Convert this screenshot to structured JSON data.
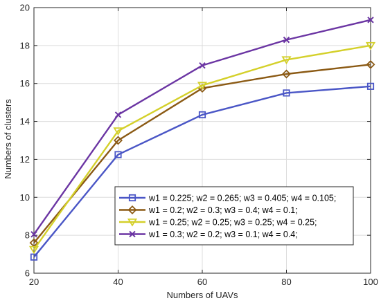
{
  "chart_data": {
    "type": "line",
    "title": "",
    "xlabel": "Numbers of UAVs",
    "ylabel": "Numbers of clusters",
    "x": [
      20,
      40,
      60,
      80,
      100
    ],
    "xlim": [
      20,
      100
    ],
    "ylim": [
      6,
      20
    ],
    "xticks": [
      20,
      40,
      60,
      80,
      100
    ],
    "yticks": [
      6,
      8,
      10,
      12,
      14,
      16,
      18,
      20
    ],
    "grid": true,
    "legend_position": "lower-right",
    "series": [
      {
        "name": "w1 = 0.225; w2 = 0.265; w3 = 0.405; w4 = 0.105;",
        "values": [
          6.85,
          12.25,
          14.35,
          15.5,
          15.85
        ],
        "color": "#4a56c6",
        "marker": "square"
      },
      {
        "name": "w1 = 0.2; w2 = 0.3; w3 = 0.4; w4 = 0.1;",
        "values": [
          7.6,
          13.0,
          15.75,
          16.5,
          17.0
        ],
        "color": "#8b5a14",
        "marker": "diamond"
      },
      {
        "name": "w1 = 0.25; w2 = 0.25; w3 = 0.25; w4 = 0.25;",
        "values": [
          7.25,
          13.5,
          15.9,
          17.25,
          18.0
        ],
        "color": "#d4d02a",
        "marker": "triangle-down"
      },
      {
        "name": "w1 = 0.3; w2 = 0.2; w3 = 0.1; w4 = 0.4;",
        "values": [
          8.05,
          14.35,
          16.95,
          18.3,
          19.35
        ],
        "color": "#6b35a3",
        "marker": "x"
      }
    ]
  }
}
